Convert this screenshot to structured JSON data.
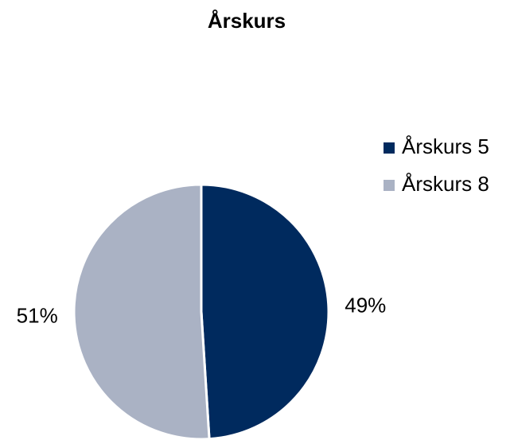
{
  "chart_data": {
    "type": "pie",
    "title": "Årskurs",
    "categories": [
      "Årskurs 5",
      "Årskurs 8"
    ],
    "values": [
      49,
      51
    ],
    "value_labels": [
      "49%",
      "51%"
    ],
    "colors": [
      "#002a5e",
      "#aab2c4"
    ],
    "legend": "right"
  }
}
